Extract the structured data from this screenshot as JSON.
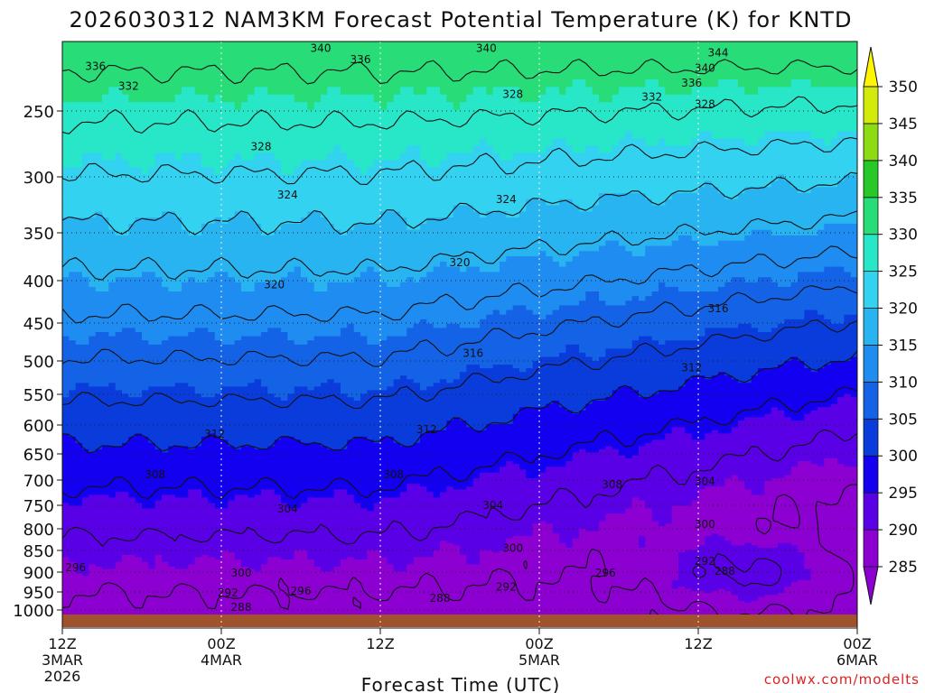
{
  "chart_data": {
    "type": "heatmap",
    "title": "2026030312 NAM3KM Forecast Potential Temperature (K) for KNTD",
    "xlabel": "Forecast Time (UTC)",
    "ylabel": "",
    "x_ticks": [
      {
        "hour": 0,
        "label": "12Z",
        "sub": "3MAR",
        "sub2": "2026"
      },
      {
        "hour": 12,
        "label": "00Z",
        "sub": "4MAR",
        "sub2": ""
      },
      {
        "hour": 24,
        "label": "12Z",
        "sub": "",
        "sub2": ""
      },
      {
        "hour": 36,
        "label": "00Z",
        "sub": "5MAR",
        "sub2": ""
      },
      {
        "hour": 48,
        "label": "12Z",
        "sub": "",
        "sub2": ""
      },
      {
        "hour": 60,
        "label": "00Z",
        "sub": "6MAR",
        "sub2": ""
      }
    ],
    "y_ticks": [
      250,
      300,
      350,
      400,
      450,
      500,
      550,
      600,
      650,
      700,
      750,
      800,
      850,
      900,
      950,
      1000
    ],
    "x_range_hours": [
      0,
      60
    ],
    "y_range_hpa": [
      200,
      1013
    ],
    "colorbar": {
      "levels": [
        285,
        290,
        295,
        300,
        305,
        310,
        315,
        320,
        325,
        330,
        335,
        340,
        345,
        350
      ],
      "colors": [
        "#8c00d2",
        "#5a00e6",
        "#1400f0",
        "#0a3cdc",
        "#1463e6",
        "#1e8cf0",
        "#28b4f0",
        "#32d2f0",
        "#28e6c8",
        "#28dc78",
        "#28c828",
        "#8cdc14",
        "#d2eb0a",
        "#fff500"
      ]
    },
    "contour_levels": [
      288,
      292,
      296,
      300,
      304,
      308,
      312,
      316,
      320,
      324,
      328,
      332,
      336,
      340,
      344
    ],
    "contour_labels": [
      {
        "text": "340",
        "hour": 19.5,
        "hpa": 205
      },
      {
        "text": "336",
        "hour": 22.5,
        "hpa": 213
      },
      {
        "text": "340",
        "hour": 32,
        "hpa": 205
      },
      {
        "text": "344",
        "hour": 49.5,
        "hpa": 208
      },
      {
        "text": "340",
        "hour": 48.5,
        "hpa": 219
      },
      {
        "text": "336",
        "hour": 47.5,
        "hpa": 230
      },
      {
        "text": "332",
        "hour": 44.5,
        "hpa": 240
      },
      {
        "text": "336",
        "hour": 2.5,
        "hpa": 218
      },
      {
        "text": "332",
        "hour": 5,
        "hpa": 232
      },
      {
        "text": "328",
        "hour": 34,
        "hpa": 238
      },
      {
        "text": "328",
        "hour": 48.5,
        "hpa": 245
      },
      {
        "text": "328",
        "hour": 15,
        "hpa": 277
      },
      {
        "text": "324",
        "hour": 17,
        "hpa": 316
      },
      {
        "text": "324",
        "hour": 33.5,
        "hpa": 320
      },
      {
        "text": "320",
        "hour": 30,
        "hpa": 381
      },
      {
        "text": "320",
        "hour": 16,
        "hpa": 405
      },
      {
        "text": "316",
        "hour": 49.5,
        "hpa": 433
      },
      {
        "text": "316",
        "hour": 31,
        "hpa": 490
      },
      {
        "text": "312",
        "hour": 47.5,
        "hpa": 510
      },
      {
        "text": "312",
        "hour": 11.5,
        "hpa": 616
      },
      {
        "text": "312",
        "hour": 27.5,
        "hpa": 608
      },
      {
        "text": "308",
        "hour": 7,
        "hpa": 690
      },
      {
        "text": "308",
        "hour": 25,
        "hpa": 690
      },
      {
        "text": "308",
        "hour": 41.5,
        "hpa": 709
      },
      {
        "text": "304",
        "hour": 17,
        "hpa": 758
      },
      {
        "text": "304",
        "hour": 32.5,
        "hpa": 750
      },
      {
        "text": "304",
        "hour": 48.5,
        "hpa": 703
      },
      {
        "text": "300",
        "hour": 48.5,
        "hpa": 790
      },
      {
        "text": "300",
        "hour": 34,
        "hpa": 845
      },
      {
        "text": "300",
        "hour": 13.5,
        "hpa": 902
      },
      {
        "text": "296",
        "hour": 1,
        "hpa": 890
      },
      {
        "text": "296",
        "hour": 18,
        "hpa": 948
      },
      {
        "text": "296",
        "hour": 41,
        "hpa": 902
      },
      {
        "text": "292",
        "hour": 48.5,
        "hpa": 875
      },
      {
        "text": "292",
        "hour": 33.5,
        "hpa": 938
      },
      {
        "text": "292",
        "hour": 12.5,
        "hpa": 952
      },
      {
        "text": "288",
        "hour": 50,
        "hpa": 898
      },
      {
        "text": "288",
        "hour": 28.5,
        "hpa": 968
      },
      {
        "text": "288",
        "hour": 13.5,
        "hpa": 993
      }
    ]
  },
  "credit": "coolwx.com/modelts"
}
